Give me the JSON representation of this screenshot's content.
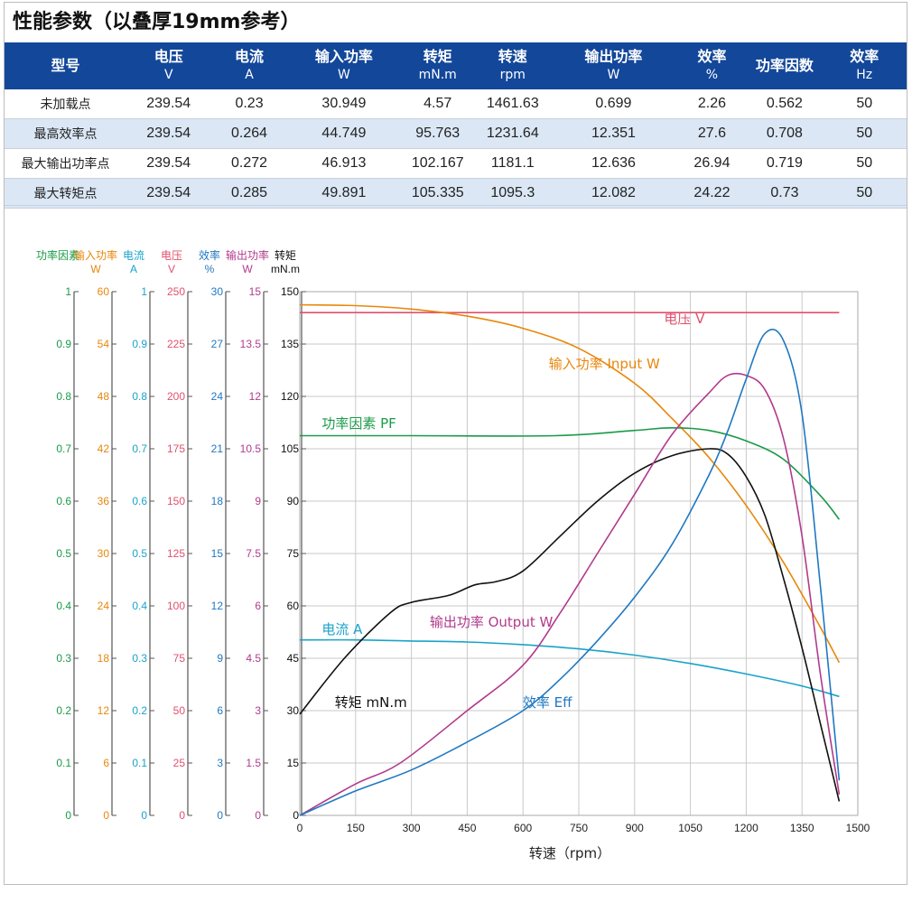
{
  "title": "性能参数（以叠厚19mm参考）",
  "table": {
    "headers": [
      {
        "name": "型号",
        "unit": ""
      },
      {
        "name": "电压",
        "unit": "V"
      },
      {
        "name": "电流",
        "unit": "A"
      },
      {
        "name": "输入功率",
        "unit": "W"
      },
      {
        "name": "转矩",
        "unit": "mN.m"
      },
      {
        "name": "转速",
        "unit": "rpm"
      },
      {
        "name": "输出功率",
        "unit": "W"
      },
      {
        "name": "效率",
        "unit": "%"
      },
      {
        "name": "功率因数",
        "unit": ""
      },
      {
        "name": "效率",
        "unit": "Hz"
      }
    ],
    "rows": [
      [
        "未加载点",
        "239.54",
        "0.23",
        "30.949",
        "4.57",
        "1461.63",
        "0.699",
        "2.26",
        "0.562",
        "50"
      ],
      [
        "最高效率点",
        "239.54",
        "0.264",
        "44.749",
        "95.763",
        "1231.64",
        "12.351",
        "27.6",
        "0.708",
        "50"
      ],
      [
        "最大输出功率点",
        "239.54",
        "0.272",
        "46.913",
        "102.167",
        "1181.1",
        "12.636",
        "26.94",
        "0.719",
        "50"
      ],
      [
        "最大转矩点",
        "239.54",
        "0.285",
        "49.891",
        "105.335",
        "1095.3",
        "12.082",
        "24.22",
        "0.73",
        "50"
      ]
    ]
  },
  "chart_data": {
    "type": "line",
    "xlabel": "转速（rpm）",
    "xlim": [
      0,
      1500
    ],
    "xticks": [
      "0",
      "150",
      "300",
      "450",
      "600",
      "750",
      "900",
      "1050",
      "1200",
      "1350",
      "1500"
    ],
    "axes": [
      {
        "key": "pf",
        "name": "功率因素",
        "unit": "",
        "color": "#1a9a48",
        "ticks": [
          "0",
          "0.1",
          "0.2",
          "0.3",
          "0.4",
          "0.5",
          "0.6",
          "0.7",
          "0.8",
          "0.9",
          "1"
        ]
      },
      {
        "key": "input",
        "name": "输入功率",
        "unit": "W",
        "color": "#e8870c",
        "ticks": [
          "0",
          "6",
          "12",
          "18",
          "24",
          "30",
          "36",
          "42",
          "48",
          "54",
          "60"
        ]
      },
      {
        "key": "current",
        "name": "电流",
        "unit": "A",
        "color": "#19a3c9",
        "ticks": [
          "0",
          "0.1",
          "0.2",
          "0.3",
          "0.4",
          "0.5",
          "0.6",
          "0.7",
          "0.8",
          "0.9",
          "1"
        ]
      },
      {
        "key": "voltage",
        "name": "电压",
        "unit": "V",
        "color": "#e0506e",
        "ticks": [
          "0",
          "25",
          "50",
          "75",
          "100",
          "125",
          "150",
          "175",
          "200",
          "225",
          "250"
        ]
      },
      {
        "key": "eff",
        "name": "效率",
        "unit": "%",
        "color": "#1f78c1",
        "ticks": [
          "0",
          "3",
          "6",
          "9",
          "12",
          "15",
          "18",
          "21",
          "24",
          "27",
          "30"
        ]
      },
      {
        "key": "output",
        "name": "输出功率",
        "unit": "W",
        "color": "#b23a8c",
        "ticks": [
          "0",
          "1.5",
          "3",
          "4.5",
          "6",
          "7.5",
          "9",
          "10.5",
          "12",
          "13.5",
          "15"
        ]
      },
      {
        "key": "torque",
        "name": "转矩",
        "unit": "mN.m",
        "color": "#111111",
        "ticks": [
          "0",
          "15",
          "30",
          "45",
          "60",
          "75",
          "90",
          "105",
          "120",
          "135",
          "150"
        ]
      }
    ],
    "series": [
      {
        "name": "电压 V",
        "axis": "voltage",
        "color": "#e0506e",
        "x": [
          0,
          300,
          600,
          900,
          1200,
          1450
        ],
        "y": [
          240,
          240,
          240,
          240,
          240,
          240
        ]
      },
      {
        "name": "输入功率 Input W",
        "axis": "input",
        "color": "#e8870c",
        "x": [
          0,
          150,
          300,
          450,
          600,
          750,
          900,
          1000,
          1100,
          1200,
          1300,
          1400,
          1450
        ],
        "y": [
          58.5,
          58.4,
          58.0,
          57.2,
          55.8,
          53.5,
          49.5,
          45.5,
          41.0,
          35.5,
          29.0,
          21.5,
          17.5
        ]
      },
      {
        "name": "功率因素 PF",
        "axis": "pf",
        "color": "#1a9a48",
        "x": [
          0,
          300,
          685,
          900,
          1000,
          1100,
          1200,
          1300,
          1400,
          1450
        ],
        "y": [
          0.725,
          0.725,
          0.725,
          0.735,
          0.74,
          0.735,
          0.715,
          0.68,
          0.61,
          0.565
        ]
      },
      {
        "name": "电流 A",
        "axis": "current",
        "color": "#19a3c9",
        "x": [
          0,
          150,
          300,
          450,
          600,
          750,
          900,
          1050,
          1200,
          1350,
          1450
        ],
        "y": [
          0.335,
          0.335,
          0.333,
          0.331,
          0.326,
          0.318,
          0.306,
          0.29,
          0.27,
          0.247,
          0.227
        ]
      },
      {
        "name": "转矩 mN.m",
        "axis": "torque",
        "color": "#111111",
        "x": [
          0,
          120,
          243,
          300,
          400,
          470,
          530,
          600,
          700,
          800,
          900,
          1000,
          1100,
          1150,
          1200,
          1250,
          1300,
          1350,
          1400,
          1450
        ],
        "y": [
          29,
          45,
          58,
          61,
          63,
          66,
          67,
          70,
          80,
          90,
          98,
          103,
          105,
          103.5,
          97,
          86,
          68,
          48,
          26,
          4
        ]
      },
      {
        "name": "输出功率 Output W",
        "axis": "output",
        "color": "#b23a8c",
        "x": [
          0,
          150,
          270,
          450,
          600,
          700,
          800,
          900,
          1000,
          1100,
          1150,
          1200,
          1250,
          1300,
          1350,
          1400,
          1450
        ],
        "y": [
          0,
          0.9,
          1.5,
          3,
          4.3,
          5.8,
          7.5,
          9.2,
          10.9,
          12.1,
          12.6,
          12.6,
          12.2,
          10.8,
          8,
          4,
          0.6
        ]
      },
      {
        "name": "效率 Eff",
        "axis": "eff",
        "color": "#1f78c1",
        "x": [
          0,
          150,
          300,
          450,
          600,
          700,
          800,
          900,
          1000,
          1100,
          1150,
          1200,
          1250,
          1300,
          1350,
          1400,
          1450
        ],
        "y": [
          0,
          1.4,
          2.6,
          4.2,
          6,
          7.8,
          10,
          12.5,
          15.5,
          19.5,
          22,
          25,
          27.6,
          27.2,
          23,
          13,
          2
        ]
      }
    ],
    "labels": [
      {
        "text": "电压 V",
        "color": "#e0506e",
        "x": 950,
        "y": 141
      },
      {
        "text": "输入功率 Input W",
        "color": "#e8870c",
        "x": 640,
        "y": 128
      },
      {
        "text": "功率因素 PF",
        "color": "#1a9a48",
        "x": 30,
        "y": 111
      },
      {
        "text": "电流 A",
        "color": "#19a3c9",
        "x": 30,
        "y": 52
      },
      {
        "text": "输出功率 Output W",
        "color": "#b23a8c",
        "x": 320,
        "y": 54
      },
      {
        "text": "转矩 mN.m",
        "color": "#111111",
        "x": 65,
        "y": 31
      },
      {
        "text": "效率 Eff",
        "color": "#1f78c1",
        "x": 570,
        "y": 31
      }
    ]
  }
}
